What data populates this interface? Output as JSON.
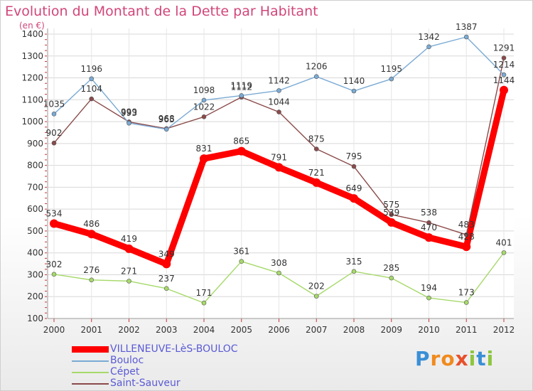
{
  "title": "Evolution du Montant de la Dette par Habitant",
  "unit_label": "(en €)",
  "logo": {
    "letters": [
      "P",
      "r",
      "o",
      "x",
      "i",
      "t",
      "i"
    ],
    "colors": [
      "#3a8fd6",
      "#f08a1e",
      "#f08a1e",
      "#e8502a",
      "#8dc63f",
      "#3a8fd6",
      "#8dc63f"
    ]
  },
  "chart_data": {
    "type": "line",
    "categories": [
      "2000",
      "2001",
      "2002",
      "2003",
      "2004",
      "2005",
      "2006",
      "2007",
      "2008",
      "2009",
      "2010",
      "2011",
      "2012"
    ],
    "ylim": [
      100,
      1400
    ],
    "yticks": [
      100,
      200,
      300,
      400,
      500,
      600,
      700,
      800,
      900,
      1000,
      1100,
      1200,
      1300,
      1400
    ],
    "grid": true,
    "legend_position": "bottom-left",
    "series": [
      {
        "name": "VILLENEUVE-LèS-BOULOC",
        "color": "#ff0000",
        "values": [
          534,
          486,
          419,
          349,
          831,
          865,
          791,
          721,
          649,
          539,
          470,
          428,
          1144
        ],
        "labels": [
          "534",
          "486",
          "419",
          "349",
          "831",
          "865",
          "791",
          "721",
          "649",
          "539",
          "470",
          "428",
          "1144"
        ],
        "style": "thick"
      },
      {
        "name": "Bouloc",
        "color": "#7aaad4",
        "values": [
          1035,
          1196,
          993,
          965,
          1098,
          1119,
          1142,
          1206,
          1140,
          1195,
          1342,
          1387,
          1214
        ],
        "labels": [
          "1035",
          "1196",
          "993",
          "965",
          "1098",
          "1119",
          "1142",
          "1206",
          "1140",
          "1195",
          "1342",
          "1387",
          "1214"
        ],
        "style": "thin"
      },
      {
        "name": "Cépet",
        "color": "#a6d96a",
        "values": [
          302,
          276,
          271,
          237,
          171,
          361,
          308,
          202,
          315,
          285,
          194,
          173,
          401
        ],
        "labels": [
          "302",
          "276",
          "271",
          "237",
          "171",
          "361",
          "308",
          "202",
          "315",
          "285",
          "194",
          "173",
          "401"
        ],
        "style": "thin"
      },
      {
        "name": "Saint-Sauveur",
        "color": "#8b4a4a",
        "values": [
          902,
          1104,
          999,
          968,
          1022,
          1112,
          1044,
          875,
          795,
          575,
          538,
          483,
          1291
        ],
        "labels": [
          "902",
          "1104",
          "999",
          "968",
          "1022",
          "1112",
          "1044",
          "875",
          "795",
          "575",
          "538",
          "483",
          "1291"
        ],
        "style": "thin"
      }
    ]
  }
}
